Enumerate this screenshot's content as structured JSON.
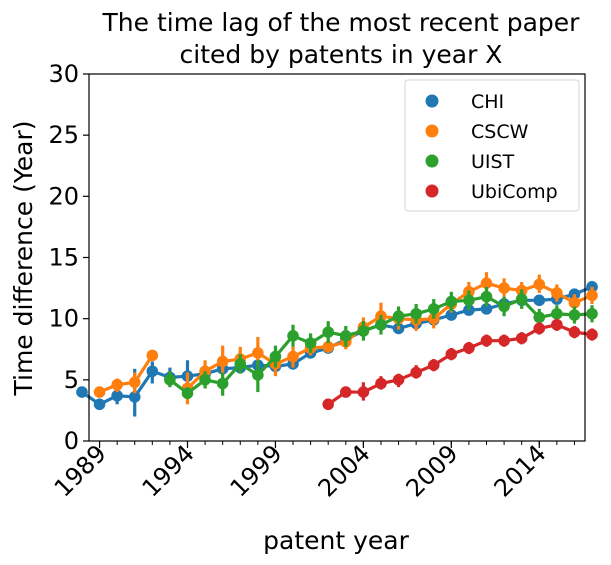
{
  "chart_data": {
    "type": "line",
    "title_lines": [
      "The time lag of the most recent paper",
      "cited by patents in year X"
    ],
    "xlabel": "patent year",
    "ylabel": "Time difference (Year)",
    "xlim": [
      1988.4,
      2016.6
    ],
    "ylim": [
      0,
      30
    ],
    "xticks": [
      1989,
      1994,
      1999,
      2004,
      2009,
      2014
    ],
    "yticks": [
      0,
      5,
      10,
      15,
      20,
      25,
      30
    ],
    "grid": false,
    "legend_position": "top-right",
    "series": [
      {
        "name": "CHI",
        "color": "#1f77b4",
        "points": [
          {
            "x": 1988,
            "y": 4.0,
            "lo": 3.8,
            "hi": 4.2
          },
          {
            "x": 1989,
            "y": 3.0,
            "lo": 2.7,
            "hi": 3.3
          },
          {
            "x": 1990,
            "y": 3.7,
            "lo": 3.0,
            "hi": 4.4
          },
          {
            "x": 1991,
            "y": 3.6,
            "lo": 2.0,
            "hi": 5.9
          },
          {
            "x": 1992,
            "y": 5.7,
            "lo": 4.7,
            "hi": 6.5
          },
          {
            "x": 1993,
            "y": 5.2,
            "lo": 4.5,
            "hi": 6.0
          },
          {
            "x": 1994,
            "y": 5.3,
            "lo": 4.6,
            "hi": 6.6
          },
          {
            "x": 1995,
            "y": 5.5,
            "lo": 4.9,
            "hi": 6.1
          },
          {
            "x": 1996,
            "y": 5.9,
            "lo": 5.4,
            "hi": 6.5
          },
          {
            "x": 1997,
            "y": 6.0,
            "lo": 5.6,
            "hi": 6.5
          },
          {
            "x": 1998,
            "y": 6.2,
            "lo": 5.7,
            "hi": 6.7
          },
          {
            "x": 1999,
            "y": 6.1,
            "lo": 5.8,
            "hi": 6.5
          },
          {
            "x": 2000,
            "y": 6.3,
            "lo": 5.9,
            "hi": 6.7
          },
          {
            "x": 2001,
            "y": 7.2,
            "lo": 6.8,
            "hi": 7.6
          },
          {
            "x": 2002,
            "y": 7.6,
            "lo": 7.2,
            "hi": 8.0
          },
          {
            "x": 2003,
            "y": 8.3,
            "lo": 7.9,
            "hi": 8.7
          },
          {
            "x": 2004,
            "y": 9.0,
            "lo": 8.6,
            "hi": 9.4
          },
          {
            "x": 2005,
            "y": 9.5,
            "lo": 9.1,
            "hi": 9.9
          },
          {
            "x": 2006,
            "y": 9.2,
            "lo": 8.9,
            "hi": 9.6
          },
          {
            "x": 2007,
            "y": 9.6,
            "lo": 9.3,
            "hi": 10.0
          },
          {
            "x": 2008,
            "y": 9.9,
            "lo": 9.6,
            "hi": 10.2
          },
          {
            "x": 2009,
            "y": 10.3,
            "lo": 10.0,
            "hi": 10.6
          },
          {
            "x": 2010,
            "y": 10.7,
            "lo": 10.4,
            "hi": 11.0
          },
          {
            "x": 2011,
            "y": 10.8,
            "lo": 10.5,
            "hi": 11.1
          },
          {
            "x": 2012,
            "y": 11.2,
            "lo": 10.9,
            "hi": 11.5
          },
          {
            "x": 2013,
            "y": 11.5,
            "lo": 11.2,
            "hi": 11.8
          },
          {
            "x": 2014,
            "y": 11.5,
            "lo": 11.2,
            "hi": 11.8
          },
          {
            "x": 2015,
            "y": 11.6,
            "lo": 11.3,
            "hi": 11.9
          },
          {
            "x": 2016,
            "y": 12.0,
            "lo": 11.7,
            "hi": 12.3
          },
          {
            "x": 2017,
            "y": 12.6,
            "lo": 12.2,
            "hi": 13.0
          }
        ]
      },
      {
        "name": "CSCW",
        "color": "#ff7f0e",
        "points": [
          {
            "x": 1989,
            "y": 4.0,
            "lo": 3.7,
            "hi": 4.3
          },
          {
            "x": 1990,
            "y": 4.6,
            "lo": 4.0,
            "hi": 5.1
          },
          {
            "x": 1991,
            "y": 4.8,
            "lo": 3.9,
            "hi": 5.6
          },
          {
            "x": 1992,
            "y": 7.0,
            "lo": 6.6,
            "hi": 7.3
          },
          {
            "x": 1994,
            "y": 4.3,
            "lo": 3.0,
            "hi": 5.6
          },
          {
            "x": 1995,
            "y": 5.7,
            "lo": 4.3,
            "hi": 6.6
          },
          {
            "x": 1996,
            "y": 6.5,
            "lo": 5.3,
            "hi": 7.8
          },
          {
            "x": 1997,
            "y": 6.7,
            "lo": 5.8,
            "hi": 7.7
          },
          {
            "x": 1998,
            "y": 7.2,
            "lo": 6.2,
            "hi": 8.5
          },
          {
            "x": 1999,
            "y": 6.3,
            "lo": 5.3,
            "hi": 7.1
          },
          {
            "x": 2000,
            "y": 6.9,
            "lo": 6.0,
            "hi": 7.7
          },
          {
            "x": 2001,
            "y": 7.6,
            "lo": 7.0,
            "hi": 8.3
          },
          {
            "x": 2002,
            "y": 7.7,
            "lo": 7.2,
            "hi": 8.3
          },
          {
            "x": 2003,
            "y": 8.1,
            "lo": 7.5,
            "hi": 8.9
          },
          {
            "x": 2004,
            "y": 9.3,
            "lo": 8.6,
            "hi": 10.1
          },
          {
            "x": 2005,
            "y": 10.2,
            "lo": 9.2,
            "hi": 11.3
          },
          {
            "x": 2006,
            "y": 10.0,
            "lo": 9.1,
            "hi": 10.8
          },
          {
            "x": 2007,
            "y": 9.9,
            "lo": 9.0,
            "hi": 10.8
          },
          {
            "x": 2008,
            "y": 10.0,
            "lo": 9.2,
            "hi": 10.8
          },
          {
            "x": 2009,
            "y": 11.2,
            "lo": 10.5,
            "hi": 11.9
          },
          {
            "x": 2010,
            "y": 12.2,
            "lo": 11.4,
            "hi": 13.0
          },
          {
            "x": 2011,
            "y": 12.9,
            "lo": 12.0,
            "hi": 13.8
          },
          {
            "x": 2012,
            "y": 12.5,
            "lo": 11.8,
            "hi": 13.3
          },
          {
            "x": 2013,
            "y": 12.3,
            "lo": 11.6,
            "hi": 13.0
          },
          {
            "x": 2014,
            "y": 12.8,
            "lo": 12.1,
            "hi": 13.6
          },
          {
            "x": 2015,
            "y": 12.1,
            "lo": 11.4,
            "hi": 12.8
          },
          {
            "x": 2016,
            "y": 11.3,
            "lo": 10.6,
            "hi": 12.0
          },
          {
            "x": 2017,
            "y": 11.9,
            "lo": 11.2,
            "hi": 12.6
          }
        ]
      },
      {
        "name": "UIST",
        "color": "#2ca02c",
        "points": [
          {
            "x": 1993,
            "y": 5.0,
            "lo": 4.4,
            "hi": 5.7
          },
          {
            "x": 1994,
            "y": 3.9,
            "lo": 3.5,
            "hi": 4.4
          },
          {
            "x": 1995,
            "y": 5.0,
            "lo": 4.3,
            "hi": 5.7
          },
          {
            "x": 1996,
            "y": 4.7,
            "lo": 3.7,
            "hi": 5.6
          },
          {
            "x": 1997,
            "y": 6.3,
            "lo": 5.5,
            "hi": 7.1
          },
          {
            "x": 1998,
            "y": 5.4,
            "lo": 4.0,
            "hi": 6.6
          },
          {
            "x": 1999,
            "y": 6.9,
            "lo": 6.0,
            "hi": 7.8
          },
          {
            "x": 2000,
            "y": 8.6,
            "lo": 7.7,
            "hi": 9.5
          },
          {
            "x": 2001,
            "y": 8.0,
            "lo": 7.2,
            "hi": 8.8
          },
          {
            "x": 2002,
            "y": 8.9,
            "lo": 8.0,
            "hi": 9.8
          },
          {
            "x": 2003,
            "y": 8.6,
            "lo": 7.7,
            "hi": 9.4
          },
          {
            "x": 2004,
            "y": 9.0,
            "lo": 8.2,
            "hi": 9.8
          },
          {
            "x": 2005,
            "y": 9.5,
            "lo": 8.7,
            "hi": 10.3
          },
          {
            "x": 2006,
            "y": 10.2,
            "lo": 9.4,
            "hi": 11.0
          },
          {
            "x": 2007,
            "y": 10.4,
            "lo": 9.6,
            "hi": 11.2
          },
          {
            "x": 2008,
            "y": 10.8,
            "lo": 10.0,
            "hi": 11.6
          },
          {
            "x": 2009,
            "y": 11.4,
            "lo": 10.6,
            "hi": 12.2
          },
          {
            "x": 2010,
            "y": 11.5,
            "lo": 10.7,
            "hi": 12.3
          },
          {
            "x": 2011,
            "y": 11.8,
            "lo": 11.0,
            "hi": 12.6
          },
          {
            "x": 2012,
            "y": 11.0,
            "lo": 10.2,
            "hi": 11.8
          },
          {
            "x": 2013,
            "y": 11.6,
            "lo": 10.8,
            "hi": 12.4
          },
          {
            "x": 2014,
            "y": 10.1,
            "lo": 9.4,
            "hi": 10.8
          },
          {
            "x": 2015,
            "y": 10.4,
            "lo": 9.7,
            "hi": 11.1
          },
          {
            "x": 2016,
            "y": 10.3,
            "lo": 9.6,
            "hi": 11.0
          },
          {
            "x": 2017,
            "y": 10.4,
            "lo": 9.7,
            "hi": 11.1
          }
        ]
      },
      {
        "name": "UbiComp",
        "color": "#d62728",
        "points": [
          {
            "x": 2002,
            "y": 3.0,
            "lo": 2.7,
            "hi": 3.3
          },
          {
            "x": 2003,
            "y": 4.0,
            "lo": 3.6,
            "hi": 4.4
          },
          {
            "x": 2004,
            "y": 4.0,
            "lo": 3.3,
            "hi": 4.8
          },
          {
            "x": 2005,
            "y": 4.7,
            "lo": 4.2,
            "hi": 5.3
          },
          {
            "x": 2006,
            "y": 5.0,
            "lo": 4.4,
            "hi": 5.5
          },
          {
            "x": 2007,
            "y": 5.6,
            "lo": 5.1,
            "hi": 6.2
          },
          {
            "x": 2008,
            "y": 6.2,
            "lo": 5.7,
            "hi": 6.7
          },
          {
            "x": 2009,
            "y": 7.1,
            "lo": 6.6,
            "hi": 7.6
          },
          {
            "x": 2010,
            "y": 7.6,
            "lo": 7.1,
            "hi": 8.1
          },
          {
            "x": 2011,
            "y": 8.2,
            "lo": 7.7,
            "hi": 8.7
          },
          {
            "x": 2012,
            "y": 8.2,
            "lo": 7.7,
            "hi": 8.7
          },
          {
            "x": 2013,
            "y": 8.4,
            "lo": 7.9,
            "hi": 8.9
          },
          {
            "x": 2014,
            "y": 9.2,
            "lo": 8.7,
            "hi": 9.7
          },
          {
            "x": 2015,
            "y": 9.5,
            "lo": 9.0,
            "hi": 10.0
          },
          {
            "x": 2016,
            "y": 8.9,
            "lo": 8.4,
            "hi": 9.4
          },
          {
            "x": 2017,
            "y": 8.7,
            "lo": 8.2,
            "hi": 9.2
          }
        ]
      }
    ]
  }
}
